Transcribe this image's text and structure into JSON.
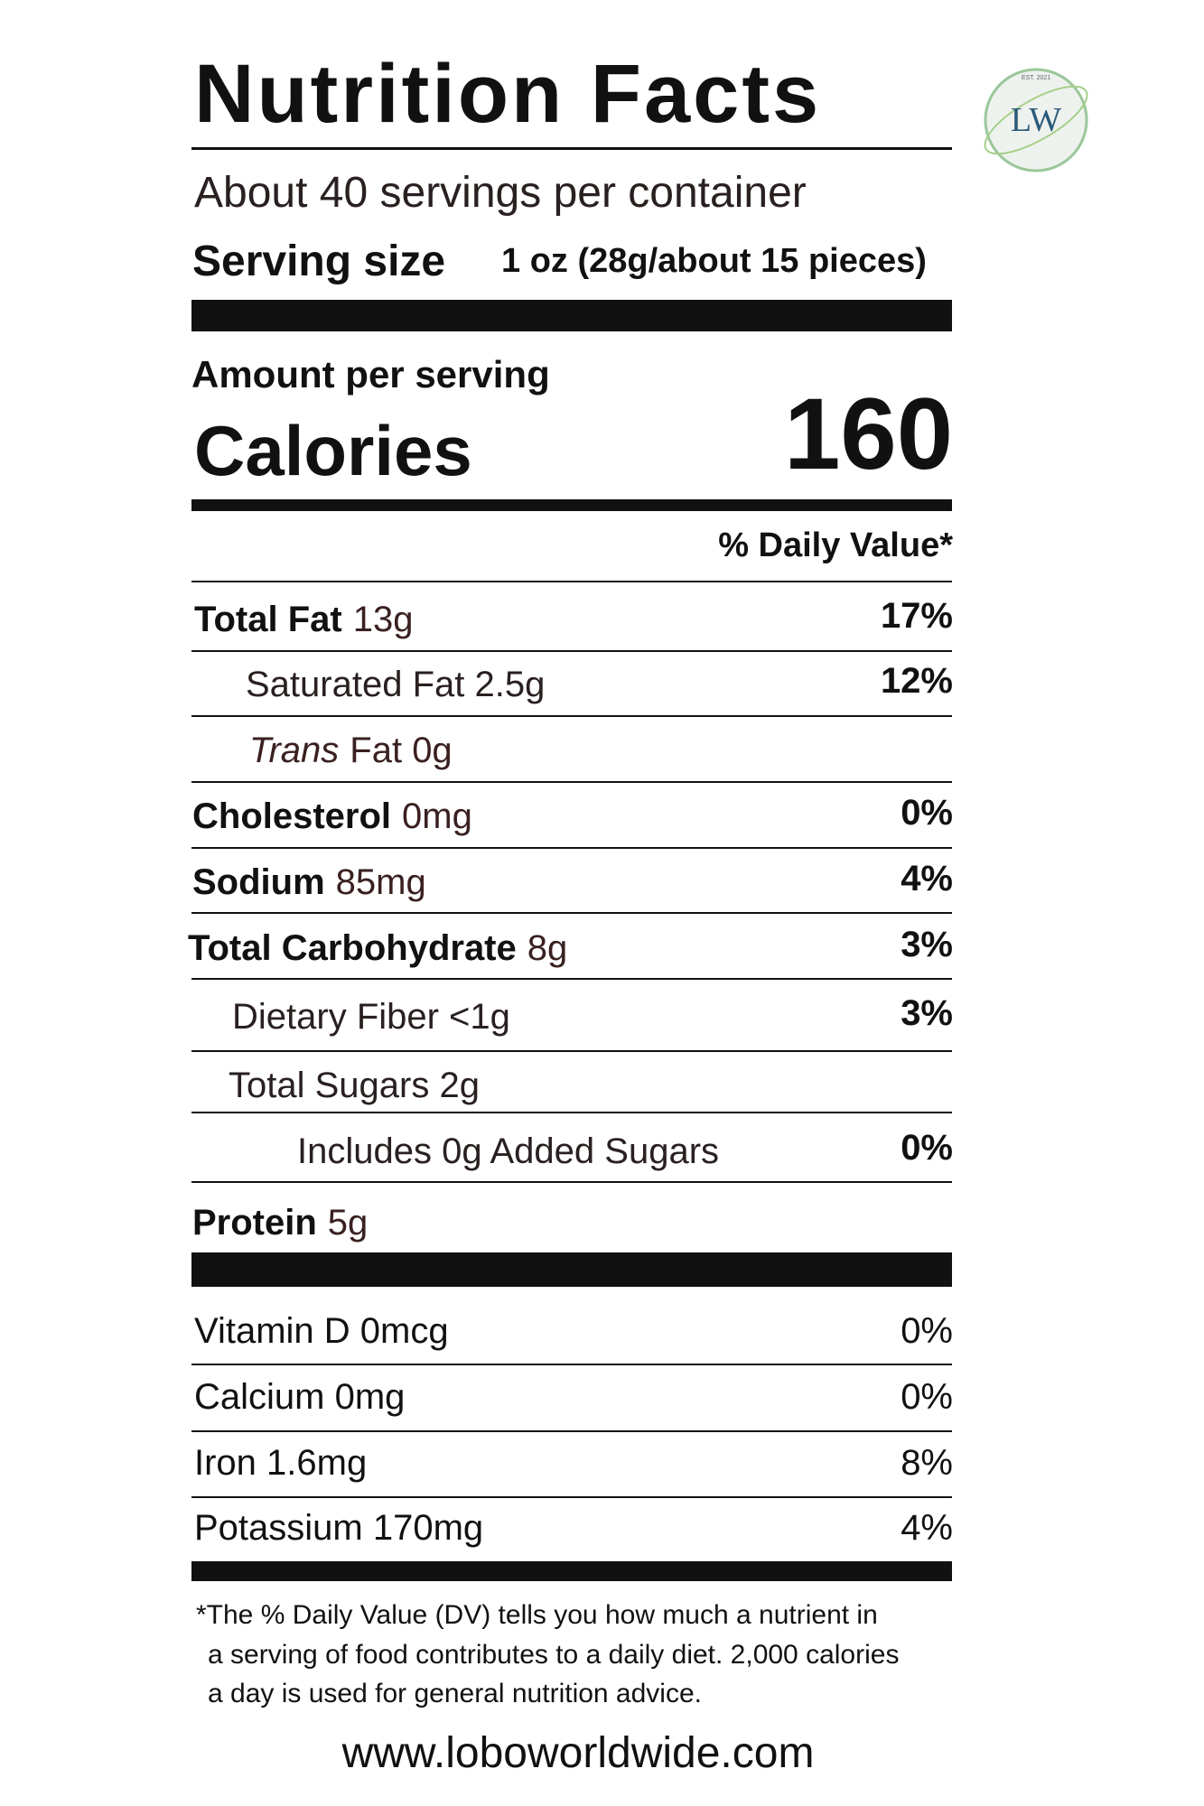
{
  "logo": {
    "initials": "LW",
    "est": "EST. 2021"
  },
  "header": {
    "title": "Nutrition Facts",
    "servings": "About 40 servings per container",
    "serving_size_label": "Serving size",
    "serving_size_value": "1 oz (28g/about 15 pieces)"
  },
  "calories": {
    "amount_label": "Amount per serving",
    "label": "Calories",
    "value": "160"
  },
  "dv_header": "% Daily Value*",
  "nutrients": [
    {
      "name": "Total Fat",
      "amount": "13g",
      "dv": "17%"
    },
    {
      "name": "Saturated Fat 2.5g",
      "dv": "12%"
    },
    {
      "name": "Trans",
      "amount": "Fat 0g"
    },
    {
      "name": "Cholesterol",
      "amount": "0mg",
      "dv": "0%"
    },
    {
      "name": "Sodium",
      "amount": "85mg",
      "dv": "4%"
    },
    {
      "name": "Total Carbohydrate",
      "amount": "8g",
      "dv": "3%"
    },
    {
      "name": "Dietary Fiber <1g",
      "dv": "3%"
    },
    {
      "name": "Total Sugars 2g"
    },
    {
      "name": "Includes 0g Added Sugars",
      "dv": "0%"
    },
    {
      "name": "Protein",
      "amount": "5g"
    }
  ],
  "vitamins": [
    {
      "name": "Vitamin D 0mcg",
      "dv": "0%"
    },
    {
      "name": "Calcium 0mg",
      "dv": "0%"
    },
    {
      "name": "Iron 1.6mg",
      "dv": "8%"
    },
    {
      "name": "Potassium 170mg",
      "dv": "4%"
    }
  ],
  "footnote": [
    "*The % Daily Value (DV) tells you how much a nutrient in",
    "a serving of food contributes to a daily diet. 2,000 calories",
    "a day is used for general nutrition advice."
  ],
  "website": "www.loboworldwide.com"
}
